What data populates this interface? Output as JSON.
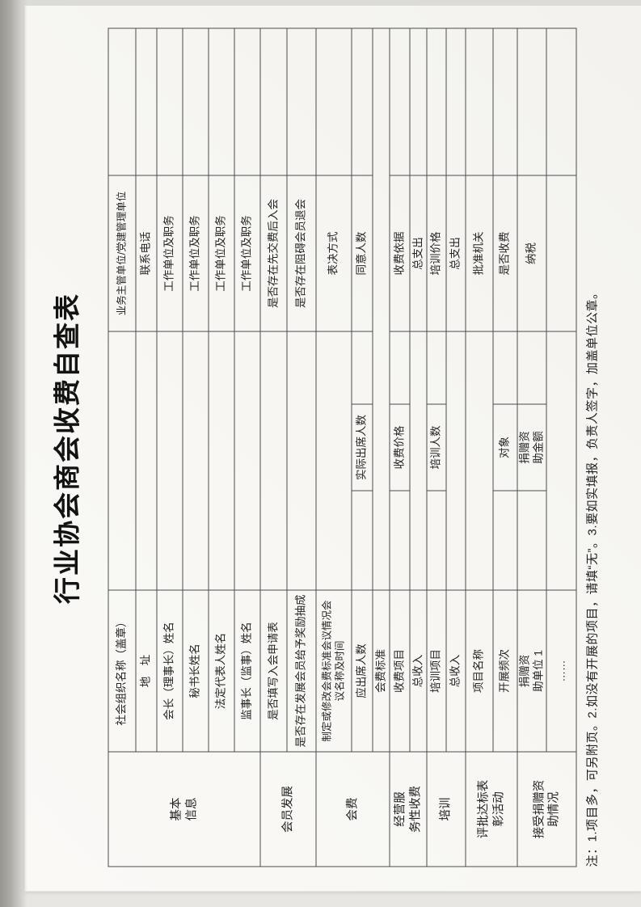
{
  "scan": {
    "title": "行业协会商会收费自查表",
    "note": "注：1.项目多，可另附页。2.如没有开展的项目，请填“无”。3.要如实填报，负责人签字，加盖单位公章。"
  },
  "table": {
    "sections": [
      {
        "label": "基本\n信息"
      },
      {
        "label": "会员发展"
      },
      {
        "label": "会费"
      },
      {
        "label": "经营服\n务性收费"
      },
      {
        "label": "培训"
      },
      {
        "label": "评批达标表\n彰活动"
      },
      {
        "label": "接受捐赠资\n助情况"
      }
    ],
    "rows": {
      "r1": {
        "label1": "社会组织名称（盖章）",
        "label2": "业务主管单位/党建管理单位"
      },
      "r2": {
        "label1": "地　址",
        "label2": "联系电话"
      },
      "r3": {
        "label1": "会长（理事长）姓名",
        "label2": "工作单位及职务"
      },
      "r4": {
        "label1": "秘书长姓名",
        "label2": "工作单位及职务"
      },
      "r5": {
        "label1": "法定代表人姓名",
        "label2": "工作单位及职务"
      },
      "r6": {
        "label1": "监事长（监事）姓名",
        "label2": "工作单位及职务"
      },
      "r7": {
        "label1": "是否填写入会申请表",
        "label2": "是否存在先交费后入会"
      },
      "r8": {
        "label1": "是否存在发展会员给予奖励抽成",
        "label2": "是否存在阻碍会员退会"
      },
      "r9": {
        "label1": "制定或修改会费标准会议情况会\n议名称及时间",
        "label2": "表决方式"
      },
      "r10": {
        "label1": "应出席人数",
        "mid": "实际出席人数",
        "label2": "同意人数"
      },
      "r11": {
        "label1": "会费标准"
      },
      "r12": {
        "label1": "收费项目",
        "mid": "收费价格",
        "label2": "收费依据"
      },
      "r13": {
        "label1": "总收入",
        "label2": "总支出"
      },
      "r14": {
        "label1": "培训项目",
        "mid": "培训人数",
        "label2": "培训价格"
      },
      "r15": {
        "label1": "总收入",
        "label2": "总支出"
      },
      "r16": {
        "label1": "项目名称",
        "label2": "批准机关"
      },
      "r17": {
        "label1": "开展频次",
        "mid": "对象",
        "label2": "是否收费"
      },
      "r18": {
        "label1": "捐赠资\n助单位 1",
        "mid": "捐赠资\n助金额",
        "label2": "纳税"
      },
      "r19": {
        "label1": "……"
      }
    }
  }
}
